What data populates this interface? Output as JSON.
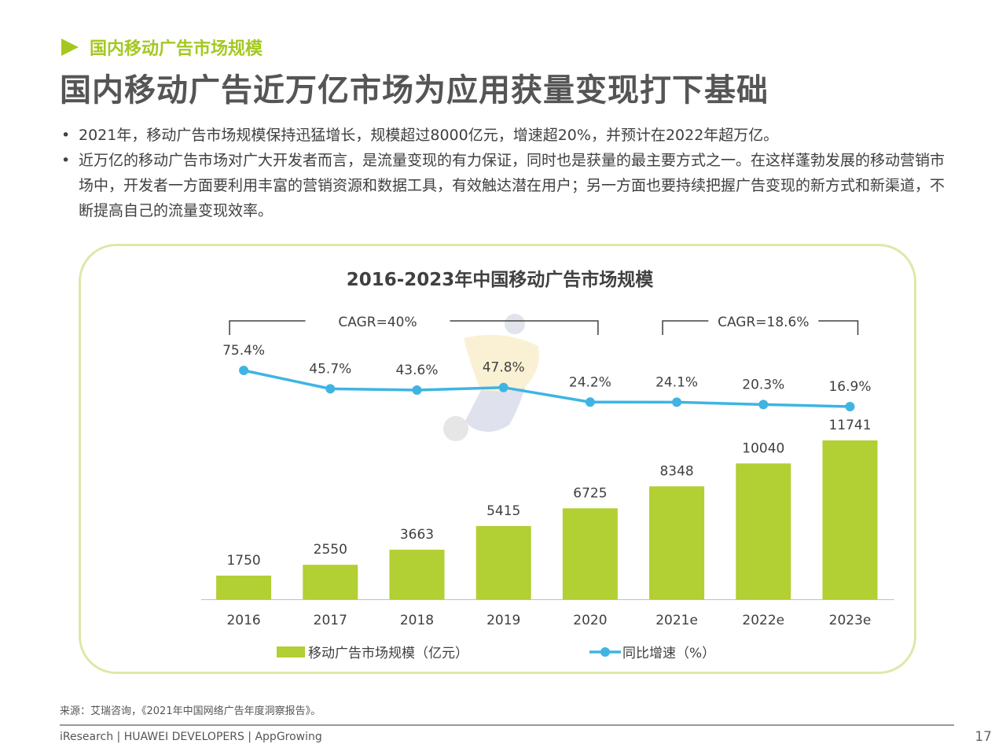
{
  "section_label": "国内移动广告市场规模",
  "title": "国内移动广告近万亿市场为应用获量变现打下基础",
  "bullets": [
    "2021年，移动广告市场规模保持迅猛增长，规模超过8000亿元，增速超20%，并预计在2022年超万亿。",
    "近万亿的移动广告市场对广大开发者而言，是流量变现的有力保证，同时也是获量的最主要方式之一。在这样蓬勃发展的移动营销市场中，开发者一方面要利用丰富的营销资源和数据工具，有效触达潜在用户；另一方面也要持续把握广告变现的新方式和新渠道，不断提高自己的流量变现效率。"
  ],
  "chart_data": {
    "type": "bar+line",
    "title": "2016-2023年中国移动广告市场规模",
    "categories": [
      "2016",
      "2017",
      "2018",
      "2019",
      "2020",
      "2021e",
      "2022e",
      "2023e"
    ],
    "series": [
      {
        "name": "移动广告市场规模（亿元）",
        "type": "bar",
        "color": "#b2cf33",
        "values": [
          1750,
          2550,
          3663,
          5415,
          6725,
          8348,
          10040,
          11741
        ]
      },
      {
        "name": "同比增速（%）",
        "type": "line",
        "color": "#3fb4e3",
        "values": [
          75.4,
          45.7,
          43.6,
          47.8,
          24.2,
          24.1,
          20.3,
          16.9
        ],
        "labels": [
          "75.4%",
          "45.7%",
          "43.6%",
          "47.8%",
          "24.2%",
          "24.1%",
          "20.3%",
          "16.9%"
        ]
      }
    ],
    "annotations": [
      {
        "text": "CAGR=40%",
        "from": "2016",
        "to": "2020"
      },
      {
        "text": "CAGR=18.6%",
        "from": "2021e",
        "to": "2023e"
      }
    ],
    "legend_position": "bottom",
    "grid": false
  },
  "source": "来源：艾瑞咨询，《2021年中国网络广告年度洞察报告》。",
  "footer": "iResearch | HUAWEI DEVELOPERS | AppGrowing",
  "page_number": "17",
  "colors": {
    "accent": "#a5c820",
    "bar": "#b2cf33",
    "line": "#3fb4e3",
    "frame": "#dde8a8"
  }
}
